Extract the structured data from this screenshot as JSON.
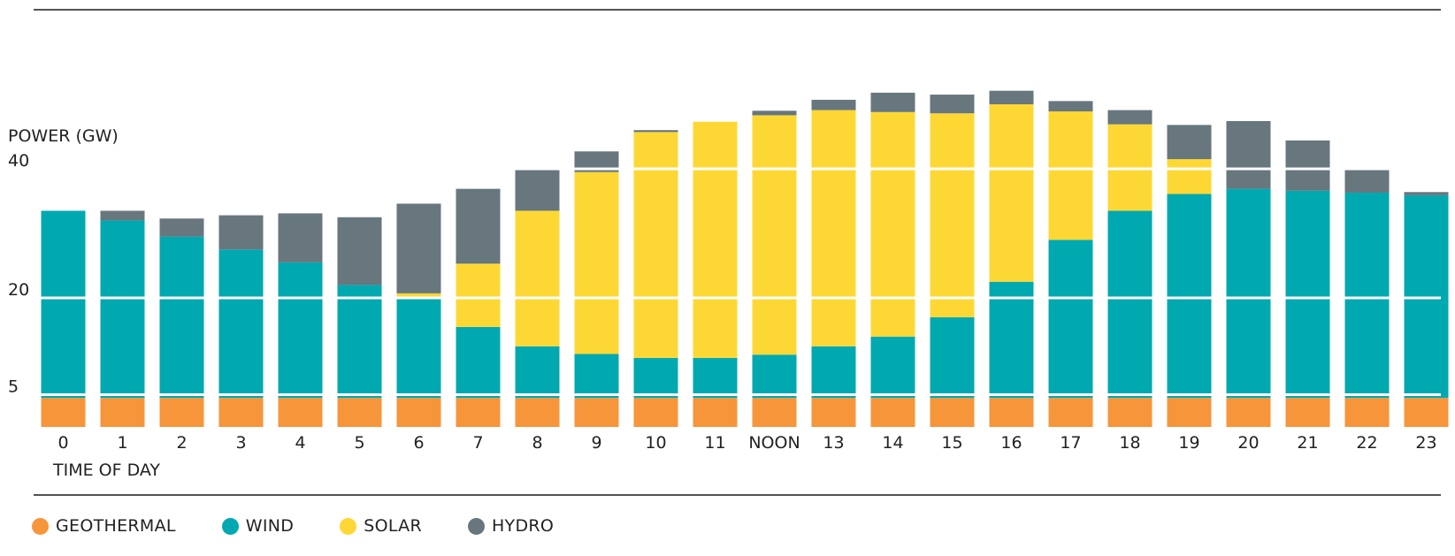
{
  "chart_data": {
    "type": "bar",
    "stacked": true,
    "ylabel": "POWER (GW)",
    "xlabel": "TIME OF DAY",
    "yticks": [
      5,
      20,
      40
    ],
    "ylim": [
      0,
      55
    ],
    "grid": true,
    "legend_position": "bottom-left",
    "categories": [
      "0",
      "1",
      "2",
      "3",
      "4",
      "5",
      "6",
      "7",
      "8",
      "9",
      "10",
      "11",
      "NOON",
      "13",
      "14",
      "15",
      "16",
      "17",
      "18",
      "19",
      "20",
      "21",
      "22",
      "23"
    ],
    "series": [
      {
        "name": "GEOTHERMAL",
        "color": "#f7953b",
        "values": [
          4.5,
          4.5,
          4.5,
          4.5,
          4.5,
          4.5,
          4.5,
          4.5,
          4.5,
          4.5,
          4.5,
          4.5,
          4.5,
          4.5,
          4.5,
          4.5,
          4.5,
          4.5,
          4.5,
          4.5,
          4.5,
          4.5,
          4.5,
          4.5
        ]
      },
      {
        "name": "WIND",
        "color": "#00a8b0",
        "values": [
          29,
          27.5,
          25,
          23,
          21,
          17.5,
          15.5,
          11,
          8,
          6.8,
          6.2,
          6.2,
          6.7,
          8,
          9.5,
          12.5,
          18,
          24.5,
          29,
          31.6,
          32.4,
          32.1,
          31.8,
          31.4
        ]
      },
      {
        "name": "SOLAR",
        "color": "#fdd835",
        "values": [
          0,
          0,
          0,
          0,
          0,
          0,
          0.7,
          9.8,
          21,
          28.2,
          35,
          36.6,
          37.1,
          36.6,
          34.8,
          31.6,
          27.5,
          19.9,
          13.4,
          5.4,
          0,
          0,
          0,
          0
        ]
      },
      {
        "name": "HYDRO",
        "color": "#68767e",
        "values": [
          0,
          1.5,
          2.8,
          5.3,
          7.6,
          10.5,
          13.9,
          11.6,
          6.4,
          3.2,
          0.3,
          0,
          0.7,
          1.6,
          3,
          2.9,
          2.1,
          1.6,
          2.2,
          5.3,
          10.5,
          7.8,
          3.5,
          0.5
        ]
      }
    ]
  }
}
